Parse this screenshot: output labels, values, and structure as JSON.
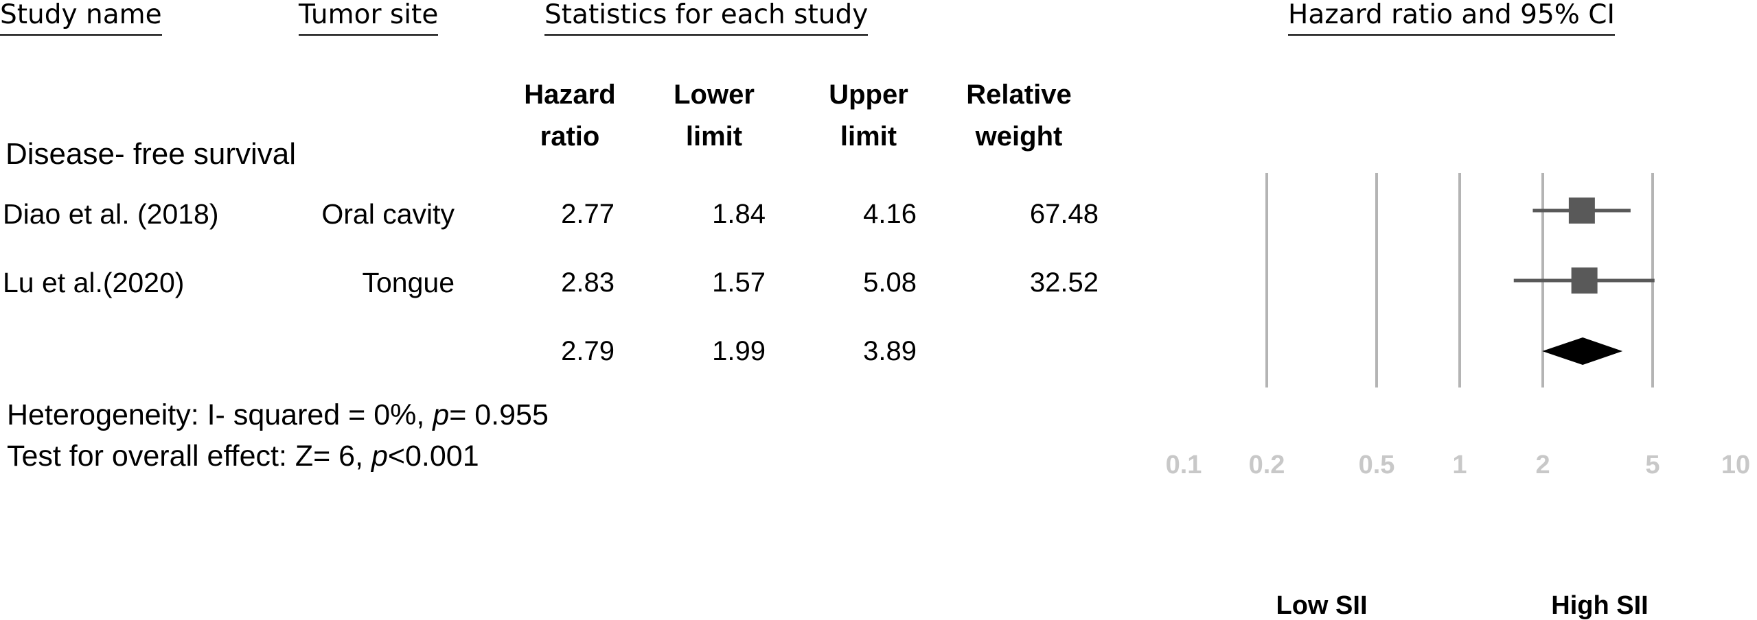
{
  "headers": {
    "study_name": "Study name",
    "tumor_site": "Tumor site",
    "statistics": "Statistics for each study",
    "plot": "Hazard ratio and 95% CI"
  },
  "columns": {
    "hr_line1": "Hazard",
    "hr_line2": "ratio",
    "lower_line1": "Lower",
    "lower_line2": "limit",
    "upper_line1": "Upper",
    "upper_line2": "limit",
    "weight_line1": "Relative",
    "weight_line2": "weight"
  },
  "subgroup": "Disease- free survival",
  "rows": [
    {
      "study": "Diao et al. (2018)",
      "site": "Oral cavity",
      "hr": "2.77",
      "lower": "1.84",
      "upper": "4.16",
      "weight": "67.48"
    },
    {
      "study": "Lu et al.(2020)",
      "site": "Tongue",
      "hr": "2.83",
      "lower": "1.57",
      "upper": "5.08",
      "weight": "32.52"
    }
  ],
  "pooled": {
    "hr": "2.79",
    "lower": "1.99",
    "upper": "3.89"
  },
  "footer": {
    "heterogeneity_prefix": "Heterogeneity: I- squared = 0%, ",
    "heterogeneity_p": "p",
    "heterogeneity_suffix": "= 0.955",
    "overall_prefix": "Test for overall effect: Z= 6, ",
    "overall_p": "p",
    "overall_suffix": "<0.001"
  },
  "chart_data": {
    "type": "forest",
    "scale": "log",
    "xlim": [
      0.1,
      10
    ],
    "ticks": [
      0.1,
      0.2,
      0.5,
      1,
      2,
      5,
      10
    ],
    "tick_labels": [
      "0.1",
      "0.2",
      "0.5",
      "1",
      "2",
      "5",
      "10"
    ],
    "left_label": "Low SII",
    "right_label": "High SII",
    "studies": [
      {
        "name": "Diao et al. (2018)",
        "hr": 2.77,
        "lower": 1.84,
        "upper": 4.16,
        "weight": 67.48
      },
      {
        "name": "Lu et al.(2020)",
        "hr": 2.83,
        "lower": 1.57,
        "upper": 5.08,
        "weight": 32.52
      }
    ],
    "pooled": {
      "hr": 2.79,
      "lower": 1.99,
      "upper": 3.89
    },
    "colors": {
      "gridline": "#b4b4b4",
      "marker": "#595959",
      "diamond": "#000000",
      "tick": "#c8c8c8"
    }
  }
}
